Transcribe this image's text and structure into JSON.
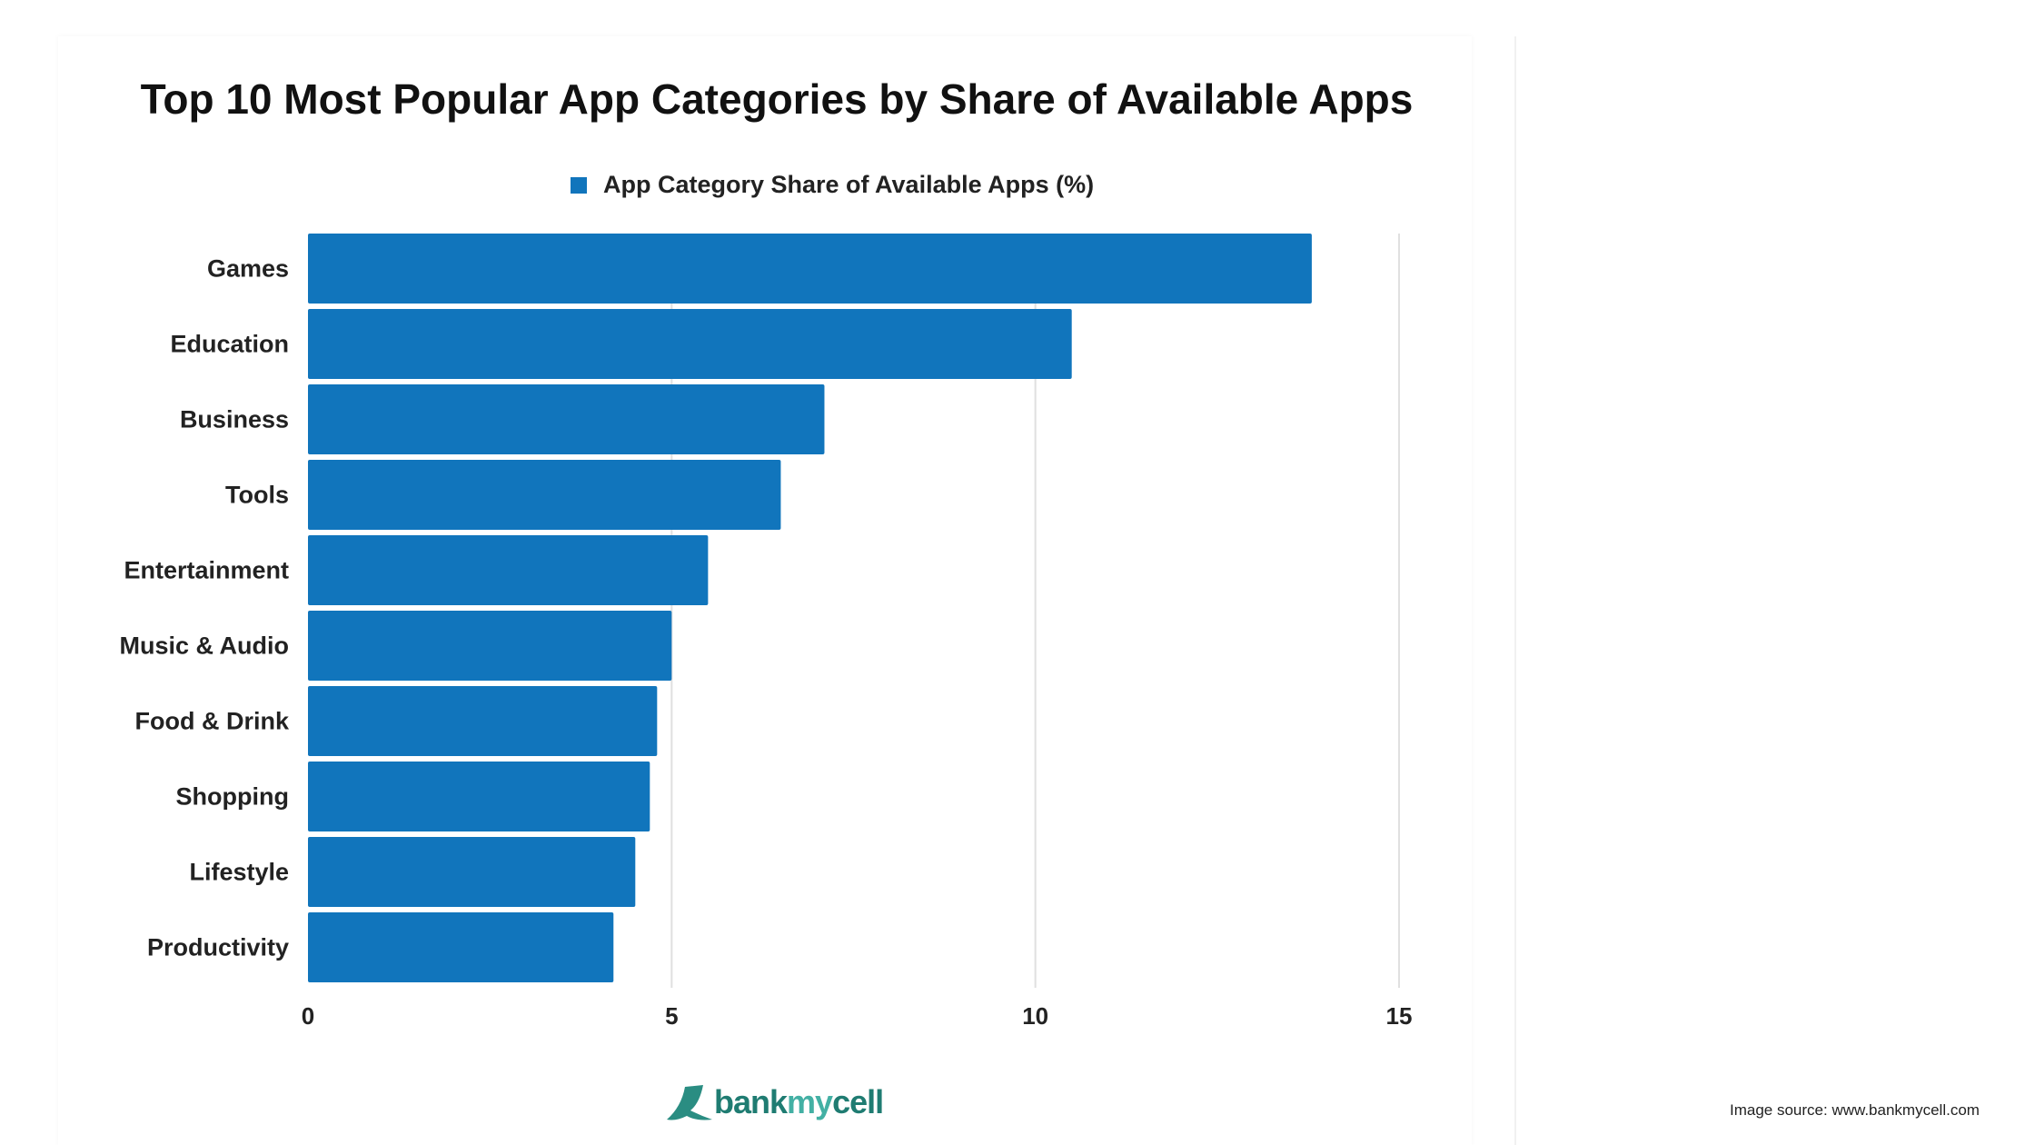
{
  "chart_data": {
    "type": "bar",
    "orientation": "horizontal",
    "title": "Top 10 Most Popular App Categories by Share of Available Apps",
    "categories": [
      "Games",
      "Education",
      "Business",
      "Tools",
      "Entertainment",
      "Music & Audio",
      "Food & Drink",
      "Shopping",
      "Lifestyle",
      "Productivity"
    ],
    "series": [
      {
        "name": "App Category Share of Available Apps (%)",
        "values": [
          13.8,
          10.5,
          7.1,
          6.5,
          5.5,
          5.0,
          4.8,
          4.7,
          4.5,
          4.2
        ]
      }
    ],
    "xlim": [
      0,
      15
    ],
    "xticks": [
      "0",
      "5",
      "10",
      "15"
    ],
    "grid": true,
    "legend": "top",
    "bar_color": "#1175bc"
  },
  "logo": {
    "part1": "bank",
    "part2": "my",
    "part3": "cell"
  },
  "source": "Image source: www.bankmycell.com"
}
